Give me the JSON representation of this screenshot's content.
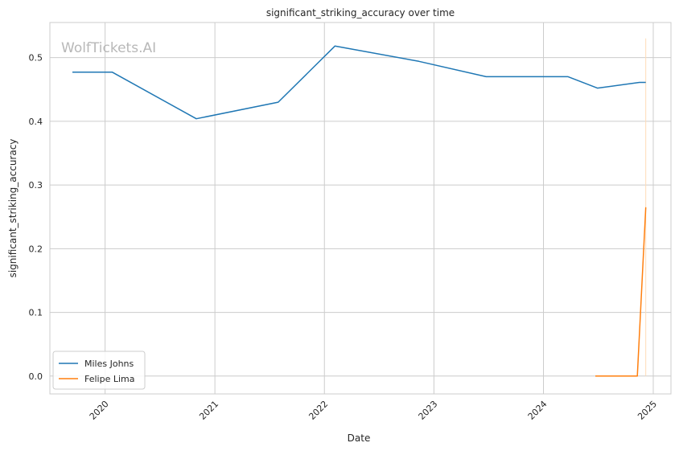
{
  "chart_data": {
    "type": "line",
    "title": "significant_striking_accuracy over time",
    "xlabel": "Date",
    "ylabel": "significant_striking_accuracy",
    "watermark": "WolfTickets.AI",
    "x_ticks": [
      "2020",
      "2021",
      "2022",
      "2023",
      "2024",
      "2025"
    ],
    "y_ticks": [
      "0.0",
      "0.1",
      "0.2",
      "0.3",
      "0.4",
      "0.5"
    ],
    "xlim": [
      "2019-07-01",
      "2025-03-01"
    ],
    "ylim": [
      -0.028,
      0.555
    ],
    "grid": true,
    "legend_position": "lower-left",
    "series": [
      {
        "name": "Miles Johns",
        "color": "#1f77b4",
        "points": [
          {
            "x": "2019-09-14",
            "y": 0.477
          },
          {
            "x": "2020-01-25",
            "y": 0.477
          },
          {
            "x": "2020-10-31",
            "y": 0.404
          },
          {
            "x": "2021-07-31",
            "y": 0.43
          },
          {
            "x": "2022-02-05",
            "y": 0.518
          },
          {
            "x": "2022-11-12",
            "y": 0.494
          },
          {
            "x": "2023-06-24",
            "y": 0.47
          },
          {
            "x": "2024-03-23",
            "y": 0.47
          },
          {
            "x": "2024-06-29",
            "y": 0.452
          },
          {
            "x": "2024-11-16",
            "y": 0.461
          },
          {
            "x": "2024-12-07",
            "y": 0.461
          }
        ]
      },
      {
        "name": "Felipe Lima",
        "color": "#ff7f0e",
        "points": [
          {
            "x": "2024-06-22",
            "y": 0.0
          },
          {
            "x": "2024-11-09",
            "y": 0.0
          },
          {
            "x": "2024-12-07",
            "y": 0.265
          }
        ]
      }
    ],
    "vertical_marker": {
      "x": "2024-12-07",
      "color": "#ffdcb8"
    }
  }
}
